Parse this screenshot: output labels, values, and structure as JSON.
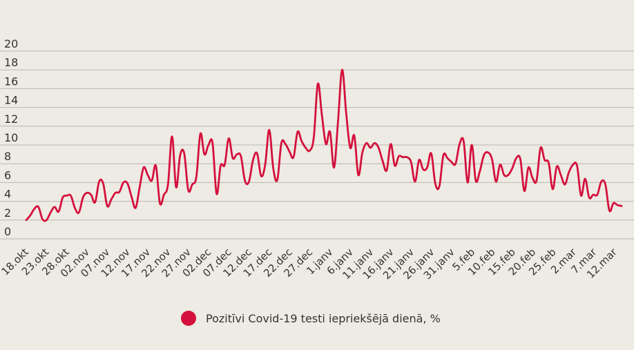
{
  "chart_data": {
    "type": "line",
    "title": "",
    "xlabel": "",
    "ylabel": "",
    "ylim": [
      0,
      20
    ],
    "yticks": [
      0,
      2,
      4,
      6,
      8,
      10,
      12,
      14,
      16,
      18,
      20
    ],
    "x_tick_labels": [
      "18.okt",
      "23.okt",
      "28.okt",
      "02.nov",
      "07.nov",
      "12.nov",
      "17.nov",
      "22.nov",
      "27.nov",
      "02.dec",
      "07.dec",
      "12.dec",
      "17.dec",
      "22.dec",
      "27.dec",
      "1.janv",
      "6.janv",
      "11.janv",
      "16.janv",
      "21.janv",
      "26.janv",
      "31.janv",
      "5.feb",
      "10.feb",
      "15.feb",
      "20.feb",
      "25.feb",
      "2.mar",
      "7.mar",
      "12.mar"
    ],
    "grid": true,
    "legend_position": "bottom",
    "series": [
      {
        "name": "Pozitīvi Covid-19 testi iepriekšējā dienā, %",
        "color": "#d4103c",
        "values": [
          2.0,
          2.5,
          3.2,
          3.4,
          2.1,
          2.0,
          2.8,
          3.4,
          2.9,
          4.4,
          4.6,
          4.6,
          3.3,
          2.8,
          4.4,
          4.9,
          4.7,
          3.9,
          6.1,
          5.9,
          3.5,
          4.2,
          4.9,
          5.0,
          6.0,
          5.9,
          4.5,
          3.3,
          5.5,
          7.6,
          6.8,
          6.2,
          7.8,
          3.8,
          4.7,
          5.8,
          10.9,
          5.5,
          8.9,
          9.1,
          5.2,
          5.8,
          6.6,
          11.2,
          9.0,
          10.0,
          10.2,
          4.8,
          7.8,
          7.9,
          10.7,
          8.6,
          9.0,
          8.8,
          6.2,
          6.1,
          8.4,
          9.1,
          6.7,
          7.9,
          11.6,
          7.5,
          6.3,
          10.2,
          10.1,
          9.3,
          8.7,
          11.4,
          10.4,
          9.7,
          9.4,
          10.8,
          16.5,
          13.2,
          10.1,
          11.4,
          7.6,
          12.6,
          18.0,
          13.4,
          9.7,
          11.0,
          6.8,
          9.2,
          10.2,
          9.7,
          10.2,
          9.7,
          8.3,
          7.3,
          10.1,
          7.8,
          8.8,
          8.7,
          8.7,
          8.2,
          6.1,
          8.4,
          7.4,
          7.6,
          9.1,
          5.9,
          5.6,
          8.9,
          8.6,
          8.2,
          8.0,
          10.1,
          10.4,
          6.0,
          10.0,
          6.2,
          7.2,
          8.9,
          9.2,
          8.5,
          6.1,
          7.9,
          6.8,
          6.8,
          7.5,
          8.6,
          8.5,
          5.1,
          7.6,
          6.5,
          6.2,
          9.7,
          8.4,
          8.1,
          5.3,
          7.7,
          6.8,
          5.8,
          7.1,
          7.9,
          7.8,
          4.6,
          6.4,
          4.4,
          4.7,
          4.7,
          6.1,
          5.8,
          3.0,
          3.8,
          3.6,
          3.5
        ]
      }
    ]
  }
}
